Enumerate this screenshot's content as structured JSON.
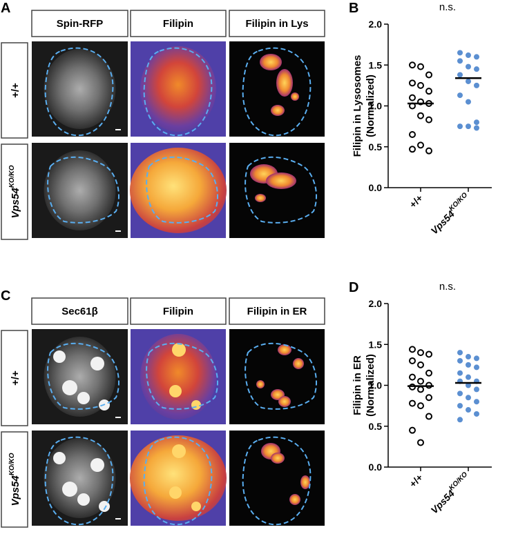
{
  "panels": [
    {
      "letter": "A",
      "columns": [
        "Spin-RFP",
        "Filipin",
        "Filipin in Lys"
      ],
      "rows": [
        {
          "base": "+/+",
          "sup": null
        },
        {
          "base": "Vps54",
          "sup": "KO/KO"
        }
      ]
    },
    {
      "letter": "C",
      "columns": [
        "Sec61β",
        "Filipin",
        "Filipin in ER"
      ],
      "rows": [
        {
          "base": "+/+",
          "sup": null
        },
        {
          "base": "Vps54",
          "sup": "KO/KO"
        }
      ]
    }
  ],
  "chart_data": [
    {
      "type": "dot",
      "letter": "B",
      "title": "n.s.",
      "ylabel": [
        "Filipin in Lysosomes",
        "(Normalized)"
      ],
      "categories": [
        "+/+",
        "Vps54"
      ],
      "category_superscripts": [
        null,
        "KO/KO"
      ],
      "colors": [
        "#000000",
        "#5b8fd1"
      ],
      "filled": [
        false,
        true
      ],
      "values": [
        [
          1.5,
          1.48,
          1.38,
          1.28,
          1.25,
          1.18,
          1.1,
          1.05,
          1.03,
          1.0,
          0.88,
          0.83,
          0.65,
          0.52,
          0.45,
          0.47
        ],
        [
          1.65,
          1.62,
          1.6,
          1.55,
          1.48,
          1.45,
          1.38,
          1.3,
          1.25,
          1.13,
          1.05,
          0.8,
          0.75,
          0.75,
          0.73
        ]
      ],
      "medians": [
        1.03,
        1.34
      ],
      "ylim": [
        0,
        2
      ],
      "yticks": [
        {
          "value": 0,
          "label": "0.0"
        },
        {
          "value": 0.5,
          "label": "0.5"
        },
        {
          "value": 1,
          "label": "1.0"
        },
        {
          "value": 1.5,
          "label": "1.5"
        },
        {
          "value": 2,
          "label": "2.0"
        }
      ]
    },
    {
      "type": "dot",
      "letter": "D",
      "title": "n.s.",
      "ylabel": [
        "Filipin in ER",
        "(Normalized)"
      ],
      "categories": [
        "+/+",
        "Vps54"
      ],
      "category_superscripts": [
        null,
        "KO/KO"
      ],
      "colors": [
        "#000000",
        "#5b8fd1"
      ],
      "filled": [
        false,
        true
      ],
      "values": [
        [
          1.44,
          1.4,
          1.38,
          1.3,
          1.25,
          1.15,
          1.1,
          1.05,
          1.0,
          0.98,
          0.95,
          0.85,
          0.78,
          0.75,
          0.62,
          0.45,
          0.3
        ],
        [
          1.4,
          1.35,
          1.33,
          1.3,
          1.25,
          1.22,
          1.15,
          1.1,
          1.05,
          1.05,
          1.0,
          0.95,
          0.9,
          0.85,
          0.8,
          0.75,
          0.7,
          0.65,
          0.58
        ]
      ],
      "medians": [
        0.99,
        1.03
      ],
      "ylim": [
        0,
        2
      ],
      "yticks": [
        {
          "value": 0,
          "label": "0.0"
        },
        {
          "value": 0.5,
          "label": "0.5"
        },
        {
          "value": 1,
          "label": "1.0"
        },
        {
          "value": 1.5,
          "label": "1.5"
        },
        {
          "value": 2,
          "label": "2.0"
        }
      ]
    }
  ]
}
